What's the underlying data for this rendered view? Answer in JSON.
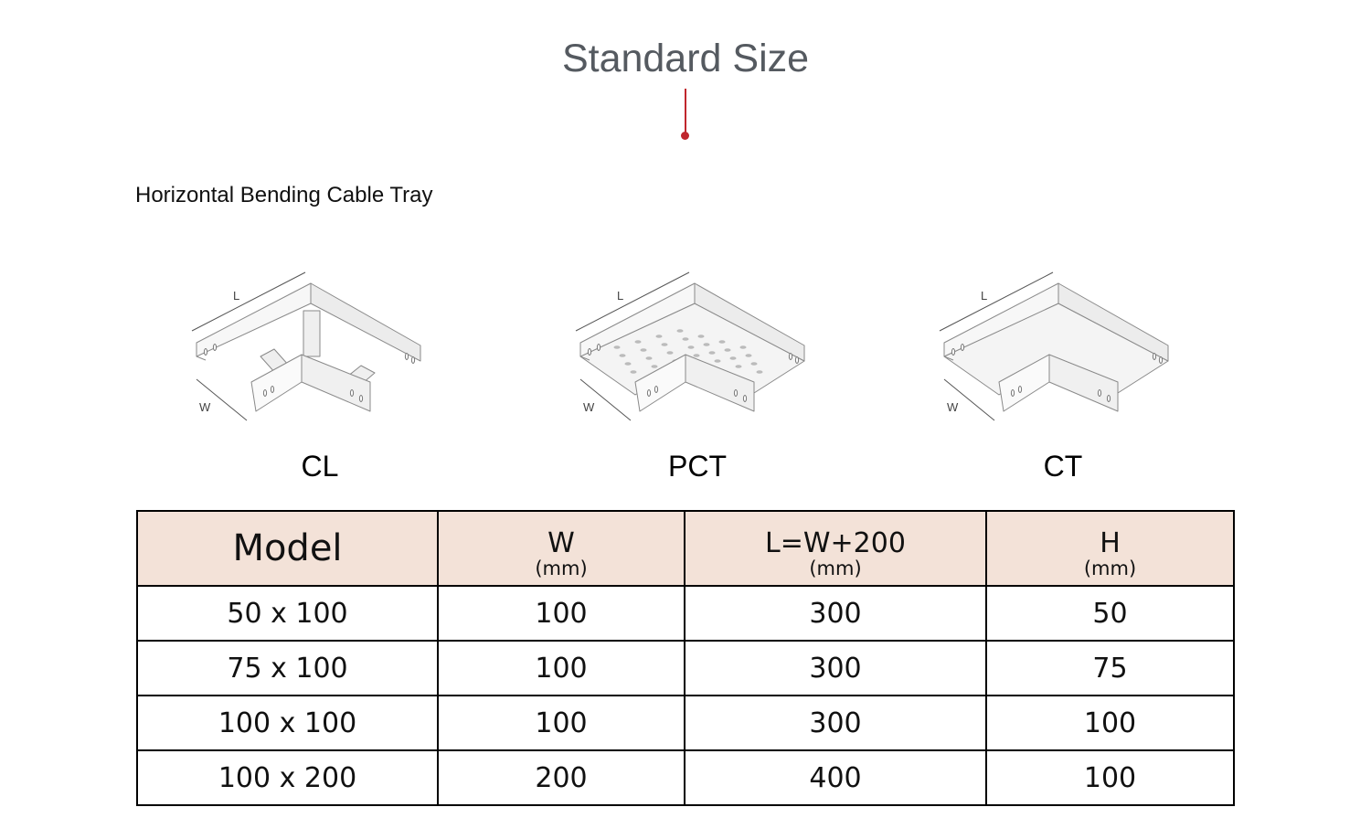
{
  "page": {
    "title": "Standard Size",
    "subtitle": "Horizontal Bending Cable Tray",
    "accent_color": "#c0262d",
    "header_bg_color": "#f3e2d8"
  },
  "products": [
    {
      "label": "CL",
      "variant": "ladder",
      "dim_l": "L",
      "dim_w": "W"
    },
    {
      "label": "PCT",
      "variant": "perforated",
      "dim_l": "L",
      "dim_w": "W"
    },
    {
      "label": "CT",
      "variant": "solid",
      "dim_l": "L",
      "dim_w": "W"
    }
  ],
  "table": {
    "headers": [
      {
        "label": "Model",
        "unit": ""
      },
      {
        "label": "W",
        "unit": "(mm)"
      },
      {
        "label": "L=W+200",
        "unit": "(mm)"
      },
      {
        "label": "H",
        "unit": "(mm)"
      }
    ],
    "rows": [
      [
        "50 x 100",
        "100",
        "300",
        "50"
      ],
      [
        "75 x 100",
        "100",
        "300",
        "75"
      ],
      [
        "100 x 100",
        "100",
        "300",
        "100"
      ],
      [
        "100 x 200",
        "200",
        "400",
        "100"
      ]
    ]
  }
}
